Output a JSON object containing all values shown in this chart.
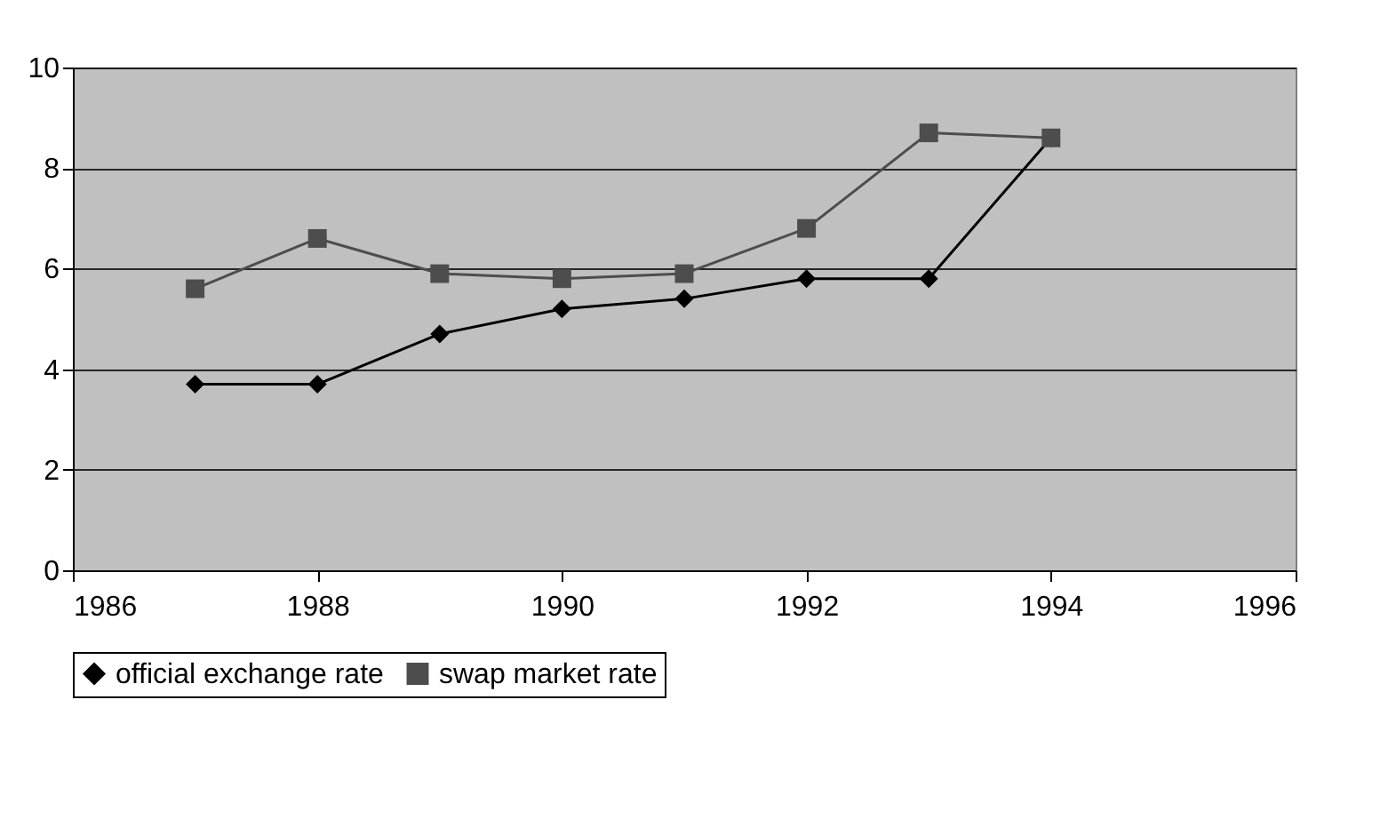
{
  "chart_data": {
    "type": "line",
    "x": [
      1987,
      1988,
      1989,
      1990,
      1991,
      1992,
      1993,
      1994
    ],
    "series": [
      {
        "name": "official exchange rate",
        "color": "#000000",
        "marker": "diamond",
        "values": [
          3.7,
          3.7,
          4.7,
          5.2,
          5.4,
          5.8,
          5.8,
          8.6
        ]
      },
      {
        "name": "swap market rate",
        "color": "#4d4d4d",
        "marker": "square",
        "values": [
          5.6,
          6.6,
          5.9,
          5.8,
          5.9,
          6.8,
          8.7,
          8.6
        ]
      }
    ],
    "xlim": [
      1986,
      1996
    ],
    "xticks": [
      1986,
      1988,
      1990,
      1992,
      1994,
      1996
    ],
    "ylim": [
      0,
      10
    ],
    "yticks": [
      0,
      2,
      4,
      6,
      8,
      10
    ],
    "grid": "y",
    "legend": "bottom",
    "line_style": "solid"
  }
}
